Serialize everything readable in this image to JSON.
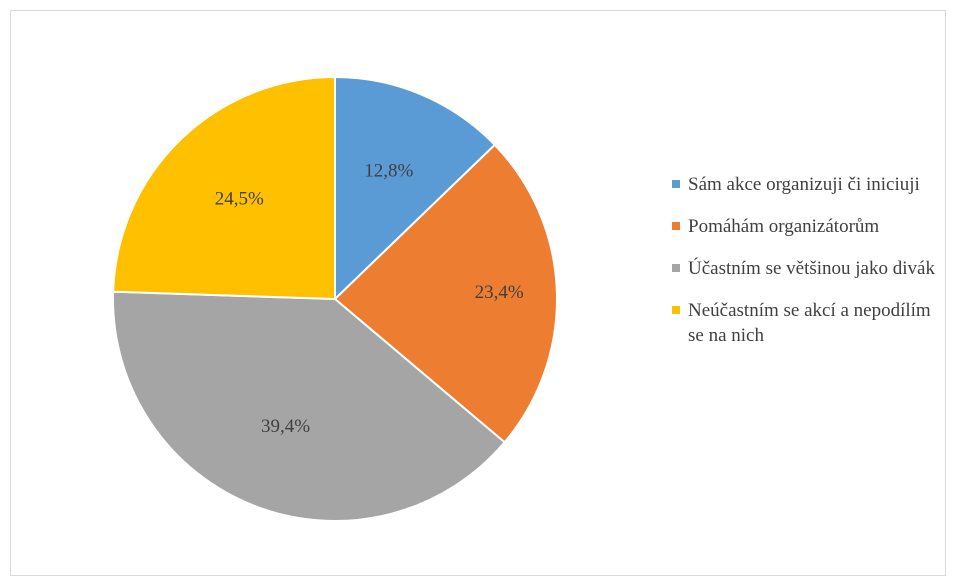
{
  "chart_data": {
    "type": "pie",
    "categories": [
      "Sám akce organizuji či iniciuji",
      "Pomáhám organizátorům",
      "Účastním se většinou jako divák",
      "Neúčastním se akcí a nepodílím se na nich"
    ],
    "values": [
      12.8,
      23.4,
      39.4,
      24.5
    ],
    "data_labels": [
      "12,8%",
      "23,4%",
      "39,4%",
      "24,5%"
    ],
    "colors": [
      "#5b9bd5",
      "#ed7d31",
      "#a5a5a5",
      "#ffc000"
    ],
    "start_angle_deg": 0,
    "direction": "clockwise",
    "legend_position": "right",
    "title": ""
  },
  "legend": {
    "items": [
      {
        "label": "Sám akce organizuji či iniciuji",
        "color": "#5b9bd5"
      },
      {
        "label": "Pomáhám organizátorům",
        "color": "#ed7d31"
      },
      {
        "label": "Účastním se většinou jako divák",
        "color": "#a5a5a5"
      },
      {
        "label": "Neúčastním se akcí a nepodílím se na nich",
        "color": "#ffc000"
      }
    ]
  }
}
